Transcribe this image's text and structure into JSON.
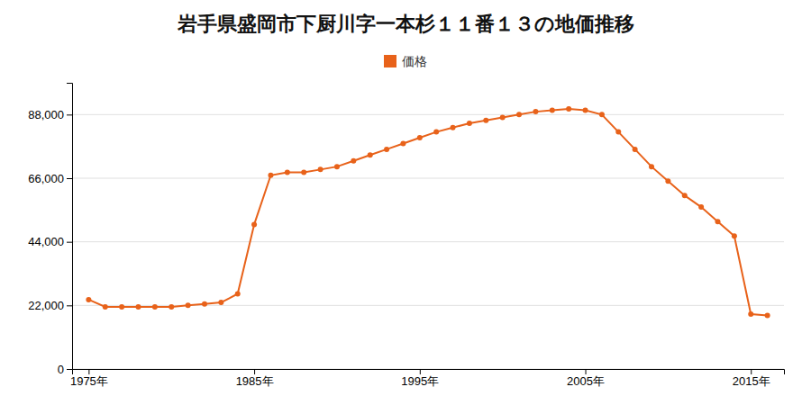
{
  "chart_data": {
    "type": "line",
    "title": "岩手県盛岡市下厨川字一本杉１１番１３の地価推移",
    "x": [
      1975,
      1976,
      1977,
      1978,
      1979,
      1980,
      1981,
      1982,
      1983,
      1984,
      1985,
      1986,
      1987,
      1988,
      1989,
      1990,
      1991,
      1992,
      1993,
      1994,
      1995,
      1996,
      1997,
      1998,
      1999,
      2000,
      2001,
      2002,
      2003,
      2004,
      2005,
      2006,
      2007,
      2008,
      2009,
      2010,
      2011,
      2012,
      2013,
      2014,
      2015,
      2016
    ],
    "series": [
      {
        "name": "価格",
        "color": "#E8621A",
        "marker": "circle",
        "line_style": "solid",
        "values": [
          24000,
          21500,
          21500,
          21500,
          21500,
          21500,
          22000,
          22500,
          23000,
          26000,
          50000,
          67000,
          68000,
          68000,
          69000,
          70000,
          72000,
          74000,
          76000,
          78000,
          80000,
          82000,
          83500,
          85000,
          86000,
          87000,
          88000,
          89000,
          89500,
          90000,
          89500,
          88000,
          82000,
          76000,
          70000,
          65000,
          60000,
          56000,
          51000,
          46000,
          19000,
          18500
        ]
      }
    ],
    "xlim": [
      1974,
      2017
    ],
    "ylim": [
      0,
      99000
    ],
    "xticks": [
      {
        "value": 1975,
        "label": "1975年"
      },
      {
        "value": 1985,
        "label": "1985年"
      },
      {
        "value": 1995,
        "label": "1995年"
      },
      {
        "value": 2005,
        "label": "2005年"
      },
      {
        "value": 2015,
        "label": "2015年"
      }
    ],
    "yticks": [
      0,
      {
        "value": 22000,
        "label": "22,000"
      },
      {
        "value": 44000,
        "label": "44,000"
      },
      {
        "value": 66000,
        "label": "66,000"
      },
      {
        "value": 88000,
        "label": "88,000"
      }
    ],
    "grid": "y",
    "legend": "top"
  }
}
